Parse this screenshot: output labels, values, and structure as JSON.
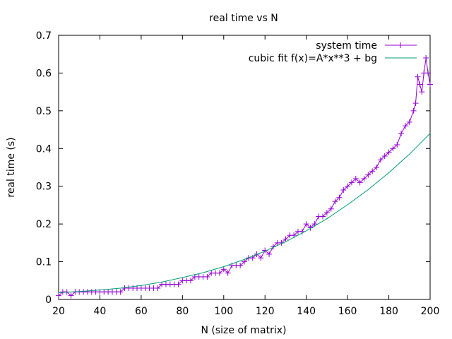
{
  "chart_data": {
    "type": "line",
    "title": "real time vs N",
    "xlabel": "N (size of matrix)",
    "ylabel": "real time (s)",
    "xlim": [
      20,
      200
    ],
    "ylim": [
      0,
      0.7
    ],
    "xticks": [
      20,
      40,
      60,
      80,
      100,
      120,
      140,
      160,
      180,
      200
    ],
    "yticks": [
      0,
      0.1,
      0.2,
      0.3,
      0.4,
      0.5,
      0.6,
      0.7
    ],
    "ytick_labels": [
      "0",
      "0.1",
      "0.2",
      "0.3",
      "0.4",
      "0.5",
      "0.6",
      "0.7"
    ],
    "grid": false,
    "legend_position": "top-right",
    "series": [
      {
        "name": "system time",
        "color": "#9400d3",
        "marker": "plus",
        "x": [
          20,
          22,
          24,
          26,
          28,
          30,
          32,
          34,
          36,
          38,
          40,
          42,
          44,
          46,
          48,
          50,
          52,
          54,
          56,
          58,
          60,
          62,
          64,
          66,
          68,
          70,
          72,
          74,
          76,
          78,
          80,
          82,
          84,
          86,
          88,
          90,
          92,
          94,
          96,
          98,
          100,
          102,
          104,
          106,
          108,
          110,
          112,
          114,
          116,
          118,
          120,
          122,
          124,
          126,
          128,
          130,
          132,
          134,
          136,
          138,
          140,
          142,
          144,
          146,
          148,
          150,
          152,
          154,
          156,
          158,
          160,
          162,
          164,
          166,
          168,
          170,
          172,
          174,
          176,
          178,
          180,
          182,
          184,
          186,
          188,
          190,
          192,
          193,
          194,
          195,
          196,
          197,
          198,
          199,
          200
        ],
        "y": [
          0.01,
          0.02,
          0.02,
          0.01,
          0.02,
          0.02,
          0.02,
          0.02,
          0.02,
          0.02,
          0.02,
          0.02,
          0.02,
          0.02,
          0.02,
          0.02,
          0.03,
          0.03,
          0.03,
          0.03,
          0.03,
          0.03,
          0.03,
          0.03,
          0.03,
          0.04,
          0.04,
          0.04,
          0.04,
          0.04,
          0.05,
          0.05,
          0.05,
          0.06,
          0.06,
          0.06,
          0.06,
          0.07,
          0.07,
          0.07,
          0.08,
          0.07,
          0.09,
          0.09,
          0.09,
          0.1,
          0.11,
          0.11,
          0.12,
          0.11,
          0.13,
          0.12,
          0.14,
          0.15,
          0.15,
          0.16,
          0.17,
          0.17,
          0.18,
          0.18,
          0.2,
          0.19,
          0.2,
          0.22,
          0.22,
          0.23,
          0.24,
          0.26,
          0.27,
          0.29,
          0.3,
          0.31,
          0.32,
          0.31,
          0.32,
          0.33,
          0.34,
          0.35,
          0.37,
          0.38,
          0.39,
          0.4,
          0.41,
          0.44,
          0.46,
          0.47,
          0.5,
          0.52,
          0.59,
          0.57,
          0.55,
          0.6,
          0.64,
          0.6,
          0.57
        ]
      },
      {
        "name": "cubic fit f(x)=A*x**3 + bg",
        "color": "#009e73",
        "marker": "none",
        "x": [
          20,
          30,
          40,
          50,
          60,
          70,
          80,
          90,
          100,
          110,
          120,
          130,
          140,
          150,
          160,
          170,
          180,
          190,
          200
        ],
        "y": [
          0.018,
          0.021,
          0.025,
          0.03,
          0.037,
          0.046,
          0.058,
          0.071,
          0.087,
          0.106,
          0.128,
          0.153,
          0.182,
          0.214,
          0.251,
          0.291,
          0.336,
          0.385,
          0.44
        ]
      }
    ]
  }
}
